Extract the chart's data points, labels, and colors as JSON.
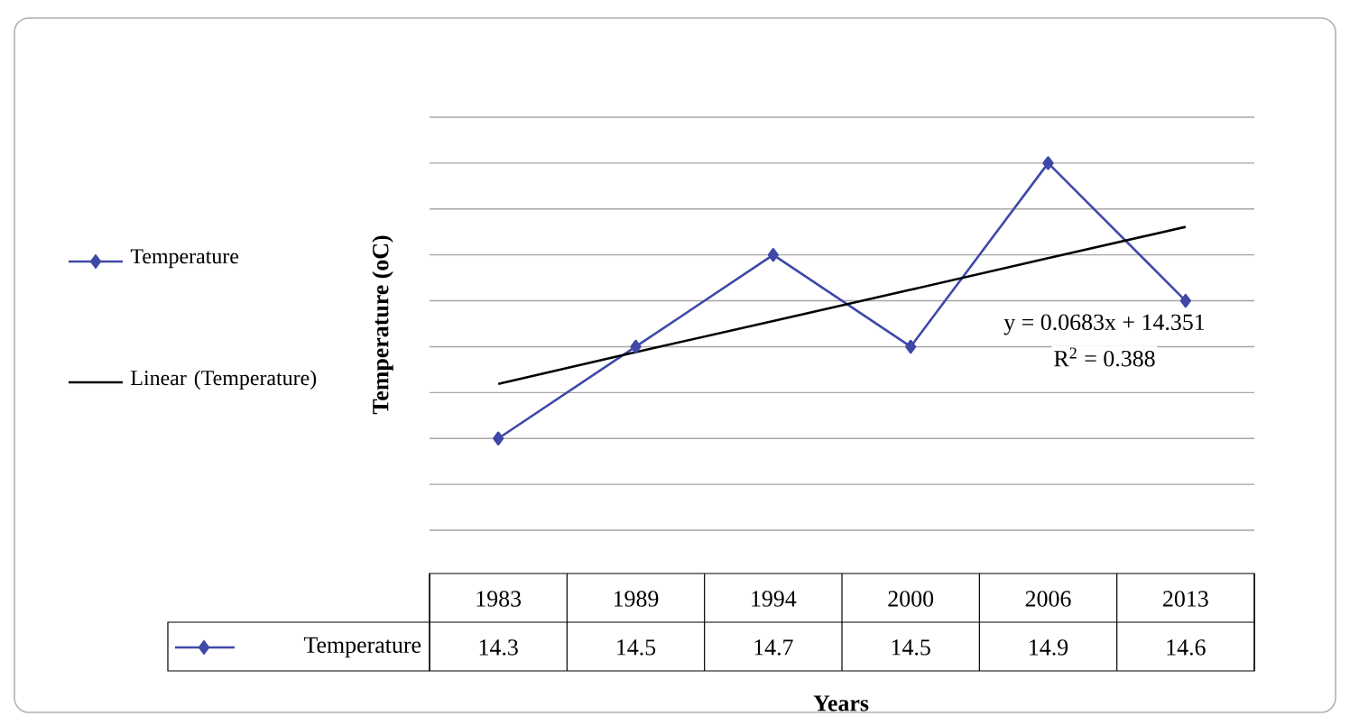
{
  "chart_data": {
    "type": "line",
    "xlabel": "Years",
    "ylabel": "Temperature  (oC)",
    "categories": [
      "1983",
      "1989",
      "1994",
      "2000",
      "2006",
      "2013"
    ],
    "series": [
      {
        "name": "Temperature",
        "color": "#3f48a8",
        "values": [
          14.3,
          14.5,
          14.7,
          14.5,
          14.9,
          14.6
        ],
        "value_labels": [
          "14.3",
          "14.5",
          "14.7",
          "14.5",
          "14.9",
          "14.6"
        ],
        "marker": "diamond"
      },
      {
        "name": "Linear (Temperature)",
        "type": "line",
        "color": "#000000",
        "values": [
          14.419,
          14.488,
          14.556,
          14.624,
          14.693,
          14.761
        ],
        "marker": "none"
      }
    ],
    "ylim": [
      14.1,
      15.0
    ],
    "yticks": [
      {
        "value": 14.1,
        "label": null
      },
      {
        "value": 14.2,
        "label": null
      },
      {
        "value": 14.3,
        "label": null
      },
      {
        "value": 14.4,
        "label": null
      },
      {
        "value": 14.5,
        "label": null
      },
      {
        "value": 14.6,
        "label": null
      },
      {
        "value": 14.7,
        "label": null
      },
      {
        "value": 14.8,
        "label": null
      },
      {
        "value": 14.9,
        "label": null
      },
      {
        "value": 15.0,
        "label": null
      }
    ],
    "grid": "y",
    "legend": "left",
    "annotations": [
      "y = 0.0683x  + 14.351",
      "R$^{2}$ = 0.388"
    ]
  }
}
